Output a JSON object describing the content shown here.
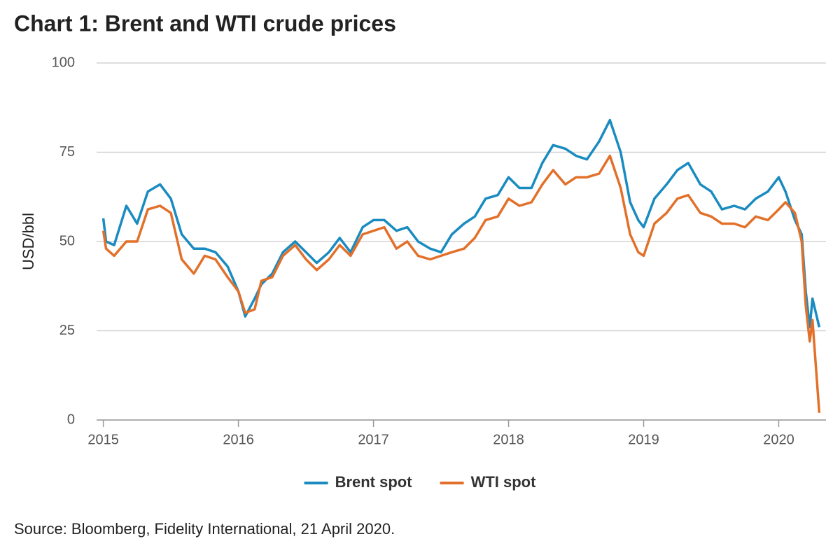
{
  "chart_data": {
    "type": "line",
    "title": "Chart 1: Brent and WTI crude prices",
    "y_label": "USD/bbl",
    "source": "Source: Bloomberg, Fidelity International, 21 April 2020.",
    "x": [
      2015.0,
      2015.02,
      2015.08,
      2015.17,
      2015.25,
      2015.33,
      2015.42,
      2015.5,
      2015.58,
      2015.67,
      2015.75,
      2015.83,
      2015.92,
      2016.0,
      2016.05,
      2016.12,
      2016.17,
      2016.25,
      2016.33,
      2016.42,
      2016.5,
      2016.58,
      2016.67,
      2016.75,
      2016.83,
      2016.92,
      2017.0,
      2017.08,
      2017.17,
      2017.25,
      2017.33,
      2017.42,
      2017.5,
      2017.58,
      2017.67,
      2017.75,
      2017.83,
      2017.92,
      2018.0,
      2018.08,
      2018.17,
      2018.25,
      2018.33,
      2018.42,
      2018.5,
      2018.58,
      2018.67,
      2018.75,
      2018.83,
      2018.9,
      2018.96,
      2019.0,
      2019.08,
      2019.17,
      2019.25,
      2019.33,
      2019.42,
      2019.5,
      2019.58,
      2019.67,
      2019.75,
      2019.83,
      2019.92,
      2020.0,
      2020.05,
      2020.12,
      2020.17,
      2020.2,
      2020.23,
      2020.25,
      2020.3
    ],
    "series": [
      {
        "name": "Brent spot",
        "color": "#1a8bc0",
        "values": [
          56.5,
          50,
          49,
          60,
          55,
          64,
          66,
          62,
          52,
          48,
          48,
          47,
          43,
          36,
          29,
          34,
          38,
          41,
          47,
          50,
          47,
          44,
          47,
          51,
          47,
          54,
          56,
          56,
          53,
          54,
          50,
          48,
          47,
          52,
          55,
          57,
          62,
          63,
          68,
          65,
          65,
          72,
          77,
          76,
          74,
          73,
          78,
          84,
          75,
          61,
          56,
          54,
          62,
          66,
          70,
          72,
          66,
          64,
          59,
          60,
          59,
          62,
          64,
          68,
          64,
          56,
          52,
          36,
          26,
          34,
          26
        ]
      },
      {
        "name": "WTI spot",
        "color": "#e2702a",
        "values": [
          53,
          48,
          46,
          50,
          50,
          59,
          60,
          58,
          45,
          41,
          46,
          45,
          40,
          36,
          30,
          31,
          39,
          40,
          46,
          49,
          45,
          42,
          45,
          49,
          46,
          52,
          53,
          54,
          48,
          50,
          46,
          45,
          46,
          47,
          48,
          51,
          56,
          57,
          62,
          60,
          61,
          66,
          70,
          66,
          68,
          68,
          69,
          74,
          65,
          52,
          47,
          46,
          55,
          58,
          62,
          63,
          58,
          57,
          55,
          55,
          54,
          57,
          56,
          59,
          61,
          58,
          50,
          32,
          22,
          28,
          2
        ]
      }
    ],
    "xlim": [
      2014.95,
      2020.35
    ],
    "xticks": [
      2015,
      2016,
      2017,
      2018,
      2019,
      2020
    ],
    "ylim": [
      0,
      100
    ],
    "yticks": [
      0,
      25,
      50,
      75,
      100
    ],
    "grid": true
  }
}
